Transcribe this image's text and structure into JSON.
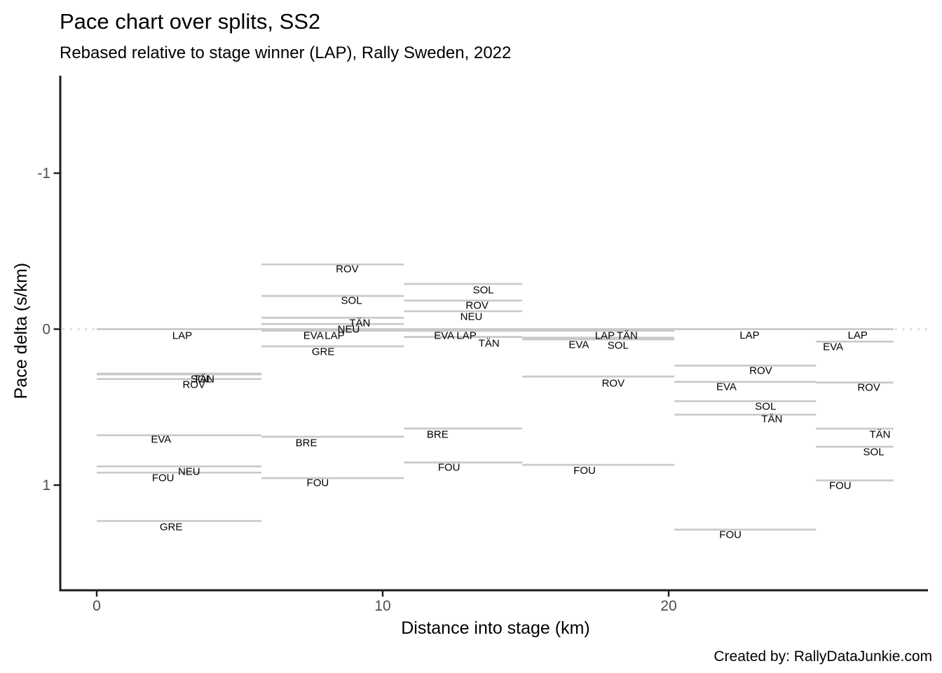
{
  "caption": "Created by: RallyDataJunkie.com",
  "colors": {
    "segment": "#c9c9c9",
    "zero_line": "#d6d6d6",
    "axis": "#1c1c1c",
    "tick_label": "#4d4d4d",
    "text": "#000000"
  },
  "chart_data": {
    "type": "segment",
    "title": "Pace chart over splits, SS2",
    "subtitle": "Rebased relative to stage winner (LAP), Rally Sweden, 2022",
    "xlabel": "Distance into stage (km)",
    "ylabel": "Pace delta (s/km)",
    "x_ticks": [
      0,
      10,
      20
    ],
    "y_ticks": [
      -1,
      0,
      1
    ],
    "xlim": [
      -1.3,
      29.1
    ],
    "ylim": [
      -1.63,
      1.67
    ],
    "y_axis_inverted": true,
    "grid": false,
    "legend": "none",
    "zero_reference_line": 0,
    "splits_km": [
      0,
      5.76,
      10.74,
      14.88,
      20.2,
      25.15,
      27.86
    ],
    "drivers": [
      "LAP",
      "ROV",
      "SOL",
      "TÄN",
      "NEU",
      "EVA",
      "GRE",
      "BRE",
      "FOU"
    ],
    "segments": [
      {
        "driver": "LAP",
        "split": 1,
        "x0": 0,
        "x1": 5.76,
        "value": 0.0,
        "label_x": 2.99,
        "label_y": 0.043
      },
      {
        "driver": "SOL",
        "split": 1,
        "x0": 0,
        "x1": 5.76,
        "value": 0.285,
        "label_x": 3.65,
        "label_y": 0.321
      },
      {
        "driver": "TÄN",
        "split": 1,
        "x0": 0,
        "x1": 5.76,
        "value": 0.29,
        "label_x": 3.75,
        "label_y": 0.322
      },
      {
        "driver": "ROV",
        "split": 1,
        "x0": 0,
        "x1": 5.76,
        "value": 0.32,
        "label_x": 3.4,
        "label_y": 0.357
      },
      {
        "driver": "EVA",
        "split": 1,
        "x0": 0,
        "x1": 5.76,
        "value": 0.68,
        "label_x": 2.25,
        "label_y": 0.708
      },
      {
        "driver": "NEU",
        "split": 1,
        "x0": 0,
        "x1": 5.76,
        "value": 0.88,
        "label_x": 3.23,
        "label_y": 0.914
      },
      {
        "driver": "FOU",
        "split": 1,
        "x0": 0,
        "x1": 5.76,
        "value": 0.92,
        "label_x": 2.32,
        "label_y": 0.955
      },
      {
        "driver": "GRE",
        "split": 1,
        "x0": 0,
        "x1": 5.76,
        "value": 1.23,
        "label_x": 2.6,
        "label_y": 1.27
      },
      {
        "driver": "ROV",
        "split": 2,
        "x0": 5.76,
        "x1": 10.74,
        "value": -0.415,
        "label_x": 8.76,
        "label_y": -0.384
      },
      {
        "driver": "SOL",
        "split": 2,
        "x0": 5.76,
        "x1": 10.74,
        "value": -0.213,
        "label_x": 8.91,
        "label_y": -0.182
      },
      {
        "driver": "TÄN",
        "split": 2,
        "x0": 5.76,
        "x1": 10.74,
        "value": -0.073,
        "label_x": 9.2,
        "label_y": -0.038
      },
      {
        "driver": "NEU",
        "split": 2,
        "x0": 5.76,
        "x1": 10.74,
        "value": -0.033,
        "label_x": 8.81,
        "label_y": 0.002
      },
      {
        "driver": "EVA",
        "split": 2,
        "x0": 5.76,
        "x1": 10.74,
        "value": 0.01,
        "label_x": 7.58,
        "label_y": 0.043
      },
      {
        "driver": "LAP",
        "split": 2,
        "x0": 5.76,
        "x1": 10.74,
        "value": 0.0,
        "label_x": 8.32,
        "label_y": 0.043
      },
      {
        "driver": "GRE",
        "split": 2,
        "x0": 5.76,
        "x1": 10.74,
        "value": 0.11,
        "label_x": 7.92,
        "label_y": 0.146
      },
      {
        "driver": "BRE",
        "split": 2,
        "x0": 5.76,
        "x1": 10.74,
        "value": 0.69,
        "label_x": 7.33,
        "label_y": 0.73
      },
      {
        "driver": "FOU",
        "split": 2,
        "x0": 5.76,
        "x1": 10.74,
        "value": 0.955,
        "label_x": 7.73,
        "label_y": 0.987
      },
      {
        "driver": "SOL",
        "split": 3,
        "x0": 10.74,
        "x1": 14.88,
        "value": -0.29,
        "label_x": 13.52,
        "label_y": -0.249
      },
      {
        "driver": "ROV",
        "split": 3,
        "x0": 10.74,
        "x1": 14.88,
        "value": -0.183,
        "label_x": 13.3,
        "label_y": -0.15
      },
      {
        "driver": "NEU",
        "split": 3,
        "x0": 10.74,
        "x1": 14.88,
        "value": -0.115,
        "label_x": 13.1,
        "label_y": -0.078
      },
      {
        "driver": "EVA",
        "split": 3,
        "x0": 10.74,
        "x1": 14.88,
        "value": 0.01,
        "label_x": 12.15,
        "label_y": 0.043
      },
      {
        "driver": "LAP",
        "split": 3,
        "x0": 10.74,
        "x1": 14.88,
        "value": 0.0,
        "label_x": 12.93,
        "label_y": 0.043
      },
      {
        "driver": "TÄN",
        "split": 3,
        "x0": 10.74,
        "x1": 14.88,
        "value": 0.05,
        "label_x": 13.72,
        "label_y": 0.092
      },
      {
        "driver": "BRE",
        "split": 3,
        "x0": 10.74,
        "x1": 14.88,
        "value": 0.637,
        "label_x": 11.92,
        "label_y": 0.676
      },
      {
        "driver": "FOU",
        "split": 3,
        "x0": 10.74,
        "x1": 14.88,
        "value": 0.855,
        "label_x": 12.32,
        "label_y": 0.888
      },
      {
        "driver": "LAP",
        "split": 4,
        "x0": 14.88,
        "x1": 20.2,
        "value": 0.0,
        "label_x": 17.77,
        "label_y": 0.043
      },
      {
        "driver": "TÄN",
        "split": 4,
        "x0": 14.88,
        "x1": 20.2,
        "value": 0.01,
        "label_x": 18.55,
        "label_y": 0.043
      },
      {
        "driver": "EVA",
        "split": 4,
        "x0": 14.88,
        "x1": 20.2,
        "value": 0.055,
        "label_x": 16.86,
        "label_y": 0.101
      },
      {
        "driver": "SOL",
        "split": 4,
        "x0": 14.88,
        "x1": 20.2,
        "value": 0.065,
        "label_x": 18.23,
        "label_y": 0.106
      },
      {
        "driver": "ROV",
        "split": 4,
        "x0": 14.88,
        "x1": 20.2,
        "value": 0.304,
        "label_x": 18.06,
        "label_y": 0.348
      },
      {
        "driver": "FOU",
        "split": 4,
        "x0": 14.88,
        "x1": 20.2,
        "value": 0.87,
        "label_x": 17.06,
        "label_y": 0.908
      },
      {
        "driver": "LAP",
        "split": 5,
        "x0": 20.2,
        "x1": 25.15,
        "value": 0.0,
        "label_x": 22.83,
        "label_y": 0.04
      },
      {
        "driver": "ROV",
        "split": 5,
        "x0": 20.2,
        "x1": 25.15,
        "value": 0.234,
        "label_x": 23.22,
        "label_y": 0.267
      },
      {
        "driver": "EVA",
        "split": 5,
        "x0": 20.2,
        "x1": 25.15,
        "value": 0.338,
        "label_x": 22.02,
        "label_y": 0.371
      },
      {
        "driver": "SOL",
        "split": 5,
        "x0": 20.2,
        "x1": 25.15,
        "value": 0.462,
        "label_x": 23.39,
        "label_y": 0.497
      },
      {
        "driver": "TÄN",
        "split": 5,
        "x0": 20.2,
        "x1": 25.15,
        "value": 0.548,
        "label_x": 23.61,
        "label_y": 0.578
      },
      {
        "driver": "FOU",
        "split": 5,
        "x0": 20.2,
        "x1": 25.15,
        "value": 1.285,
        "label_x": 22.16,
        "label_y": 1.319
      },
      {
        "driver": "LAP",
        "split": 6,
        "x0": 25.15,
        "x1": 27.86,
        "value": 0.0,
        "label_x": 26.61,
        "label_y": 0.04
      },
      {
        "driver": "EVA",
        "split": 6,
        "x0": 25.15,
        "x1": 27.86,
        "value": 0.08,
        "label_x": 25.75,
        "label_y": 0.115
      },
      {
        "driver": "ROV",
        "split": 6,
        "x0": 25.15,
        "x1": 27.86,
        "value": 0.342,
        "label_x": 27.0,
        "label_y": 0.375
      },
      {
        "driver": "TÄN",
        "split": 6,
        "x0": 25.15,
        "x1": 27.86,
        "value": 0.638,
        "label_x": 27.39,
        "label_y": 0.677
      },
      {
        "driver": "SOL",
        "split": 6,
        "x0": 25.15,
        "x1": 27.86,
        "value": 0.754,
        "label_x": 27.17,
        "label_y": 0.789
      },
      {
        "driver": "FOU",
        "split": 6,
        "x0": 25.15,
        "x1": 27.86,
        "value": 0.97,
        "label_x": 26.0,
        "label_y": 1.005
      }
    ]
  }
}
